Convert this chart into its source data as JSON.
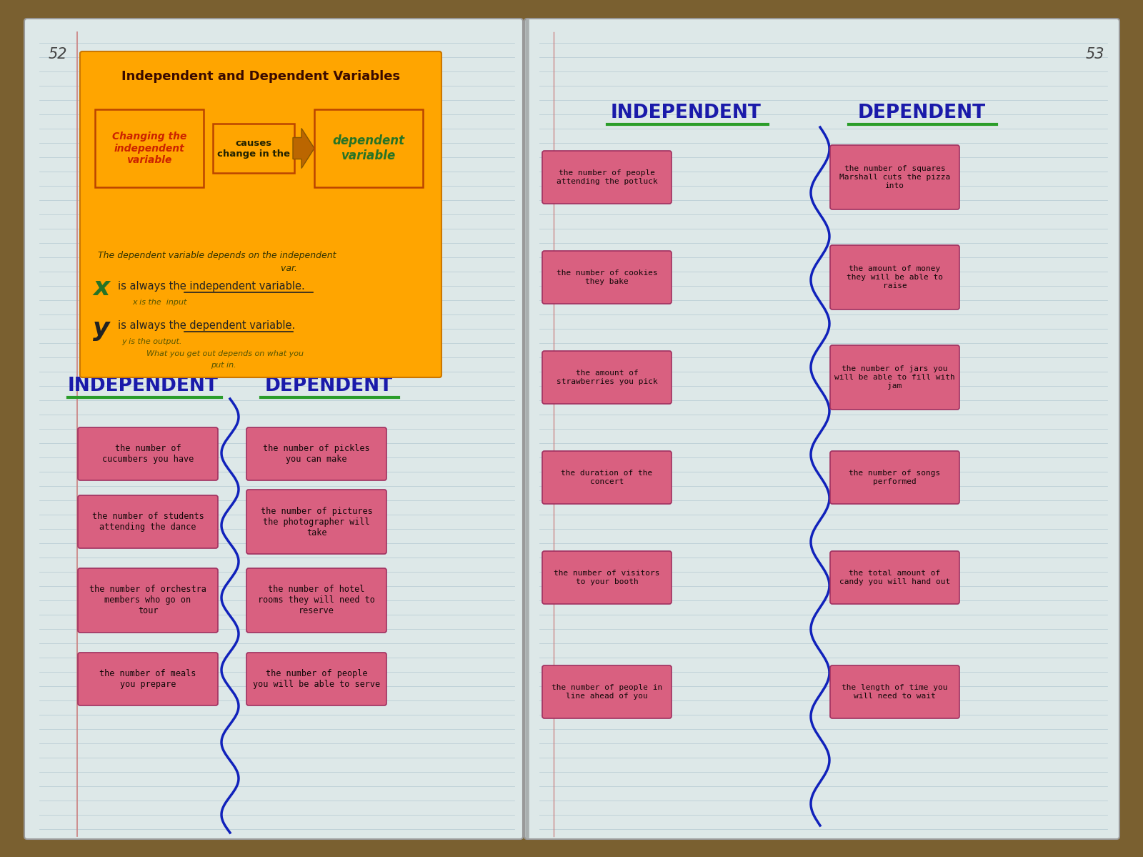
{
  "bg_wood": "#7a6030",
  "bg_page_left": "#dde8e8",
  "bg_page_right": "#dde8e8",
  "bg_orange_note": "#FFA500",
  "pink_card": "#d96080",
  "line_color": "#b8ccd4",
  "red_margin": "#cc8888",
  "wavy_color": "#1122BB",
  "green_underline": "#2a9d2a",
  "blue_header": "#1a1aAA",
  "title_text": "Independent and Dependent Variables",
  "title_color": "#3a0a00",
  "page_num_left": "52",
  "page_num_right": "53",
  "left_independent_cards": [
    "the number of\ncucumbers you have",
    "the number of students\nattending the dance",
    "the number of orchestra\nmembers who go on\ntour",
    "the number of meals\nyou prepare"
  ],
  "left_dependent_cards": [
    "the number of pickles\nyou can make",
    "the number of pictures\nthe photographer will\ntake",
    "the number of hotel\nrooms they will need to\nreserve",
    "the number of people\nyou will be able to serve"
  ],
  "right_independent_cards": [
    "the number of people\nattending the potluck",
    "the number of cookies\nthey bake",
    "the amount of\nstrawberries you pick",
    "the duration of the\nconcert",
    "the number of visitors\nto your booth",
    "the number of people in\nline ahead of you"
  ],
  "right_dependent_cards": [
    "the number of squares\nMarshall cuts the pizza\ninto",
    "the amount of money\nthey will be able to\nraise",
    "the number of jars you\nwill be able to fill with\njam",
    "the number of songs\nperformed",
    "the total amount of\ncandy you will hand out",
    "the length of time you\nwill need to wait"
  ],
  "box1_text": "Changing the\nindependent\nvariable",
  "box2_text": "causes\nchange in the",
  "box3_text": "dependent\nvariable"
}
